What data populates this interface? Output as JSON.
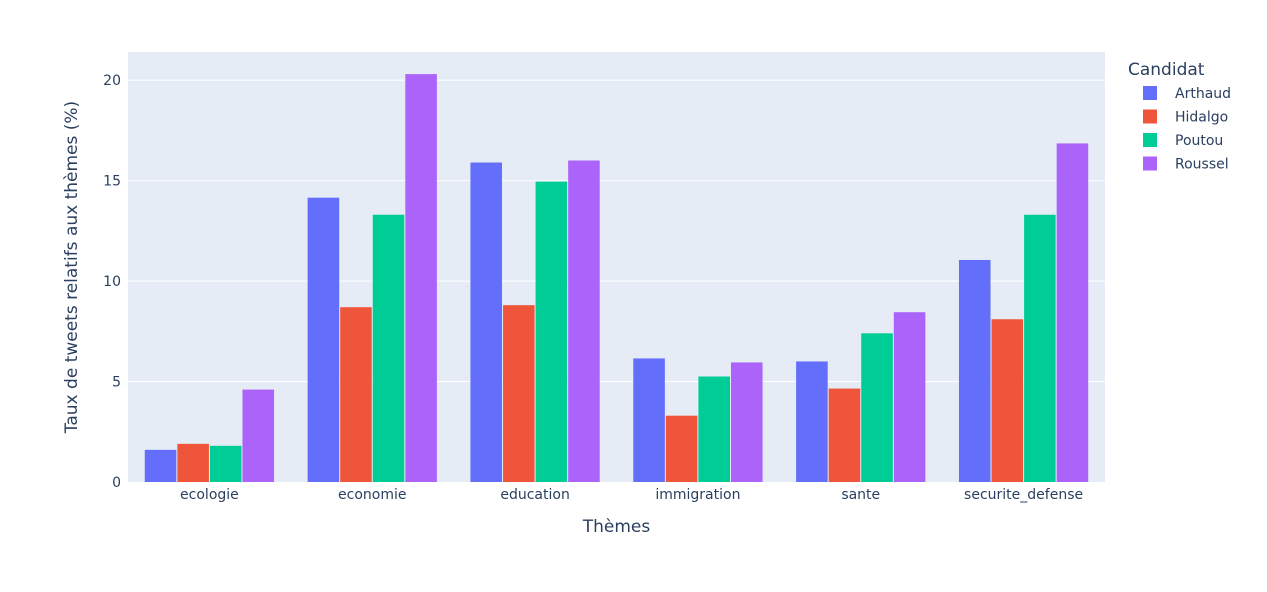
{
  "chart_data": {
    "type": "bar",
    "title": "",
    "xlabel": "Thèmes",
    "ylabel": "Taux de tweets relatifs aux thèmes (%)",
    "ylim": [
      0,
      21.4
    ],
    "yticks": [
      0,
      5,
      10,
      15,
      20
    ],
    "grid": true,
    "legend": {
      "title": "Candidat",
      "position": "right"
    },
    "categories": [
      "ecologie",
      "economie",
      "education",
      "immigration",
      "sante",
      "securite_defense"
    ],
    "series": [
      {
        "name": "Arthaud",
        "color": "#636efa",
        "values": [
          1.6,
          14.15,
          15.9,
          6.15,
          6.0,
          11.05
        ]
      },
      {
        "name": "Hidalgo",
        "color": "#ef553b",
        "values": [
          1.9,
          8.7,
          8.8,
          3.3,
          4.65,
          8.1
        ]
      },
      {
        "name": "Poutou",
        "color": "#00cc96",
        "values": [
          1.8,
          13.3,
          14.95,
          5.25,
          7.4,
          13.3
        ]
      },
      {
        "name": "Roussel",
        "color": "#ab63fa",
        "values": [
          4.6,
          20.3,
          16.0,
          5.95,
          8.45,
          16.85
        ]
      }
    ]
  },
  "colors": {
    "plot_bg": "#e5ecf6",
    "grid": "#ffffff",
    "text": "#2a3f5f"
  }
}
